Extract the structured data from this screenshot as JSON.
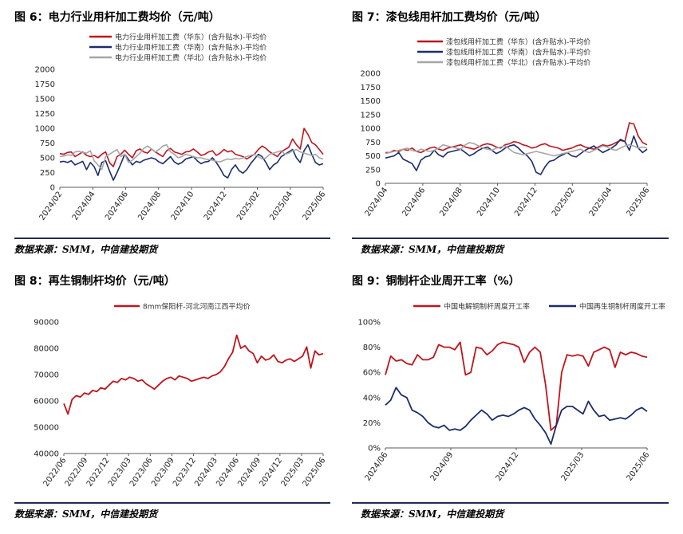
{
  "source_text": "数据来源：SMM，中信建投期货",
  "colors": {
    "red": "#c0141c",
    "navy": "#1b2c6b",
    "gray": "#a6a6a6",
    "rule": "#1f2a56",
    "axis": "#595959"
  },
  "chart_data": [
    {
      "id": "fig6",
      "type": "line",
      "title": "图 6：电力行业用杆加工费均价（元/吨）",
      "ylim": [
        0,
        2000
      ],
      "yticks": [
        "0",
        "250",
        "500",
        "750",
        "1000",
        "1250",
        "1500",
        "1750",
        "2000"
      ],
      "xticks": [
        "2024/02",
        "2024/04",
        "2024/06",
        "2024/08",
        "2024/10",
        "2024/12",
        "2025/02",
        "2025/04",
        "2025/06"
      ],
      "legend_position": "top",
      "series": [
        {
          "name": "电力行业用杆加工费（华东）(含升贴水)-平均价",
          "color": "red",
          "values": [
            570,
            560,
            590,
            600,
            520,
            560,
            600,
            540,
            520,
            540,
            500,
            560,
            600,
            420,
            350,
            520,
            560,
            630,
            560,
            500,
            620,
            650,
            600,
            580,
            650,
            600,
            560,
            520,
            620,
            660,
            600,
            580,
            560,
            600,
            610,
            650,
            600,
            540,
            560,
            600,
            620,
            540,
            580,
            640,
            600,
            620,
            560,
            540,
            520,
            480,
            520,
            560,
            640,
            700,
            660,
            600,
            560,
            520,
            600,
            640,
            680,
            820,
            720,
            650,
            1000,
            900,
            760,
            720,
            640,
            560
          ]
        },
        {
          "name": "电力行业用杆加工费（华南）(含升贴水)-平均价",
          "color": "navy",
          "values": [
            430,
            440,
            420,
            450,
            380,
            410,
            440,
            300,
            420,
            350,
            200,
            420,
            450,
            280,
            120,
            250,
            400,
            560,
            470,
            380,
            440,
            420,
            460,
            480,
            500,
            480,
            430,
            400,
            460,
            520,
            430,
            390,
            420,
            480,
            500,
            520,
            450,
            400,
            430,
            440,
            500,
            420,
            320,
            200,
            160,
            300,
            380,
            280,
            240,
            300,
            400,
            480,
            560,
            520,
            420,
            300,
            380,
            420,
            520,
            560,
            600,
            640,
            500,
            420,
            620,
            720,
            560,
            420,
            380,
            400
          ]
        },
        {
          "name": "电力行业用杆加工费（华北）(含升贴水)-平均价",
          "color": "gray",
          "values": [
            520,
            530,
            550,
            540,
            600,
            610,
            590,
            580,
            620,
            450,
            380,
            300,
            520,
            560,
            600,
            640,
            520,
            560,
            420,
            460,
            520,
            580,
            660,
            700,
            650,
            600,
            640,
            700,
            720,
            600,
            560,
            500,
            520,
            560,
            540,
            520,
            500,
            500,
            480,
            470,
            460,
            440,
            430,
            460,
            480,
            470,
            490,
            480,
            500,
            520,
            540,
            560,
            520,
            480,
            500,
            560,
            580,
            600,
            620,
            560,
            580,
            620,
            640,
            600,
            580,
            560,
            540,
            560,
            500,
            480
          ]
        }
      ]
    },
    {
      "id": "fig7",
      "type": "line",
      "title": "图 7：漆包线用杆加工费均价（元/吨）",
      "ylim": [
        0,
        2000
      ],
      "yticks": [
        "0",
        "250",
        "500",
        "750",
        "1000",
        "1250",
        "1500",
        "1750",
        "2000"
      ],
      "xticks": [
        "2024/04",
        "2024/06",
        "2024/08",
        "2024/10",
        "2024/12",
        "2025/02",
        "2025/04",
        "2025/06"
      ],
      "legend_position": "top",
      "series": [
        {
          "name": "漆包线用杆加工费（华东）(含升贴水)-平均价",
          "color": "red",
          "values": [
            560,
            560,
            600,
            580,
            620,
            600,
            640,
            580,
            560,
            600,
            640,
            660,
            620,
            600,
            640,
            660,
            680,
            700,
            660,
            640,
            620,
            660,
            700,
            720,
            700,
            660,
            640,
            700,
            720,
            760,
            740,
            700,
            680,
            640,
            660,
            700,
            720,
            680,
            660,
            640,
            600,
            620,
            640,
            680,
            700,
            660,
            640,
            620,
            660,
            700,
            680,
            700,
            740,
            780,
            760,
            1100,
            1080,
            860,
            740,
            700
          ]
        },
        {
          "name": "漆包线用杆加工费（华南）(含升贴水)-平均价",
          "color": "navy",
          "values": [
            460,
            480,
            500,
            560,
            440,
            400,
            360,
            230,
            420,
            480,
            500,
            600,
            520,
            480,
            560,
            580,
            600,
            620,
            560,
            500,
            540,
            600,
            640,
            660,
            600,
            540,
            580,
            640,
            680,
            700,
            640,
            560,
            500,
            400,
            200,
            160,
            300,
            400,
            420,
            480,
            520,
            560,
            500,
            480,
            540,
            600,
            640,
            680,
            620,
            560,
            600,
            640,
            700,
            800,
            760,
            600,
            860,
            640,
            560,
            620
          ]
        },
        {
          "name": "漆包线用杆加工费（华北）(含升贴水)-平均价",
          "color": "gray",
          "values": [
            540,
            560,
            580,
            600,
            620,
            640,
            600,
            580,
            620,
            600,
            580,
            600,
            640,
            700,
            680,
            660,
            640,
            620,
            700,
            740,
            720,
            680,
            640,
            620,
            600,
            640,
            660,
            680,
            620,
            560,
            540,
            520,
            540,
            560,
            580,
            560,
            540,
            520,
            500,
            520,
            540,
            560,
            580,
            600,
            620,
            580,
            560,
            600,
            640,
            680,
            660,
            620,
            600,
            640,
            680,
            700,
            680,
            640,
            660,
            640
          ]
        }
      ]
    },
    {
      "id": "fig8",
      "type": "line",
      "title": "图 8：再生铜制杆均价（元/吨）",
      "ylim": [
        40000,
        90000
      ],
      "yticks": [
        "40000",
        "50000",
        "60000",
        "70000",
        "80000",
        "90000"
      ],
      "xticks": [
        "2022/06",
        "2022/09",
        "2022/12",
        "2023/03",
        "2023/06",
        "2023/09",
        "2023/12",
        "2024/03",
        "2024/06",
        "2024/09",
        "2024/12",
        "2025/03",
        "2025/06"
      ],
      "legend_position": "top",
      "series": [
        {
          "name": "8mm保阳杆-河北河南江西平均价",
          "color": "red",
          "values": [
            59000,
            55000,
            60500,
            62000,
            61500,
            63000,
            62500,
            64000,
            63500,
            65000,
            64500,
            66000,
            67500,
            67000,
            68500,
            68000,
            69000,
            68500,
            67500,
            68000,
            66500,
            65500,
            64500,
            66000,
            67500,
            68500,
            69000,
            68000,
            69500,
            69000,
            68500,
            67500,
            68000,
            68500,
            69000,
            68500,
            69500,
            70000,
            71000,
            73000,
            76000,
            78500,
            85000,
            80000,
            81000,
            79000,
            78000,
            74500,
            77000,
            75500,
            76000,
            77500,
            75000,
            74500,
            75500,
            76000,
            75000,
            76000,
            77000,
            80500,
            72500,
            79000,
            77500,
            78000
          ]
        }
      ]
    },
    {
      "id": "fig9",
      "type": "line",
      "title": "图 9：铜制杆企业周开工率（%）",
      "ylim": [
        0,
        100
      ],
      "yticks": [
        "0%",
        "20%",
        "40%",
        "60%",
        "80%",
        "100%"
      ],
      "xticks": [
        "2024/06",
        "2024/09",
        "2024/12",
        "2025/03",
        "2025/06"
      ],
      "legend_position": "top",
      "series": [
        {
          "name": "中国电解铜制杆周度开工率",
          "color": "red",
          "values": [
            58,
            73,
            69,
            70,
            67,
            66,
            74,
            70,
            70,
            72,
            82,
            80,
            80,
            78,
            84,
            58,
            60,
            80,
            79,
            74,
            77,
            82,
            84,
            83,
            82,
            80,
            68,
            76,
            80,
            76,
            50,
            14,
            18,
            60,
            74,
            73,
            74,
            73,
            65,
            76,
            78,
            80,
            78,
            64,
            76,
            74,
            76,
            75,
            73,
            72
          ]
        },
        {
          "name": "中国再生铜制杆周度开工率",
          "color": "navy",
          "values": [
            34,
            38,
            48,
            42,
            40,
            30,
            28,
            25,
            20,
            17,
            16,
            18,
            14,
            15,
            14,
            17,
            22,
            26,
            30,
            27,
            22,
            25,
            26,
            25,
            27,
            30,
            32,
            30,
            23,
            18,
            12,
            3,
            18,
            30,
            33,
            33,
            30,
            27,
            37,
            30,
            25,
            26,
            22,
            23,
            24,
            23,
            26,
            30,
            32,
            29
          ]
        }
      ]
    }
  ]
}
